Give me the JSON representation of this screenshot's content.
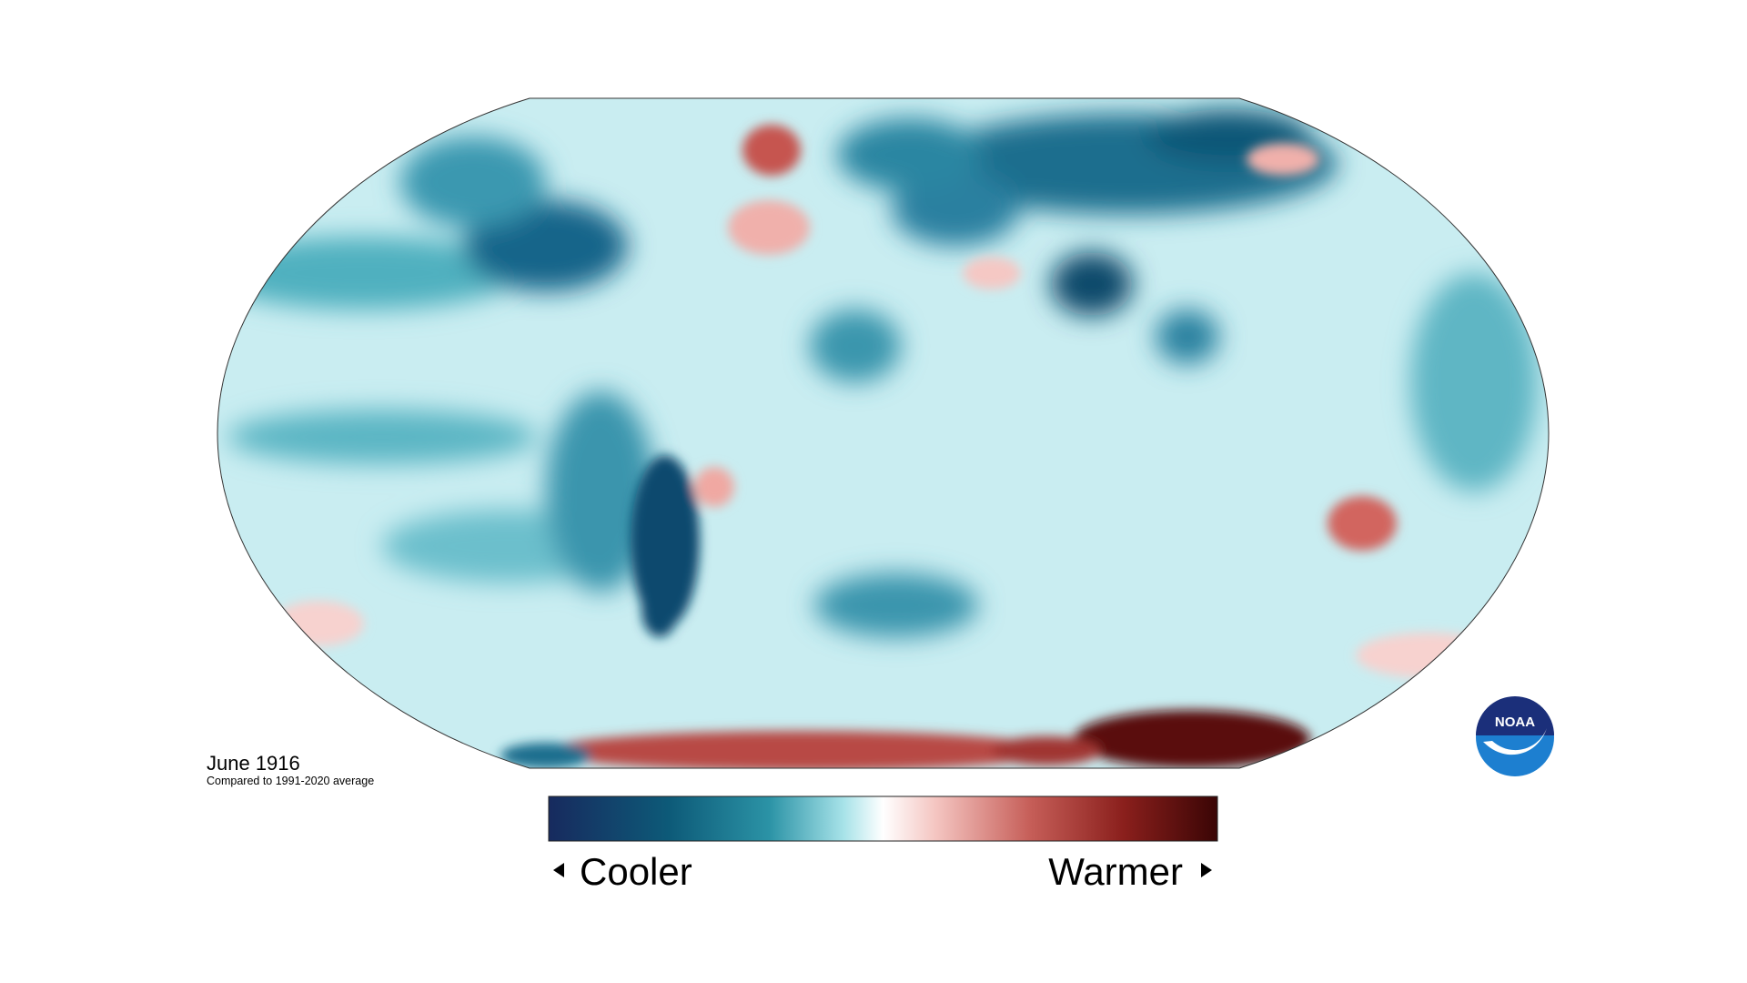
{
  "map": {
    "title": "June 1916",
    "subtitle": "Compared to 1991-2020 average"
  },
  "legend": {
    "low": "Cooler",
    "high": "Warmer"
  },
  "logo": {
    "text": "NOAA"
  }
}
